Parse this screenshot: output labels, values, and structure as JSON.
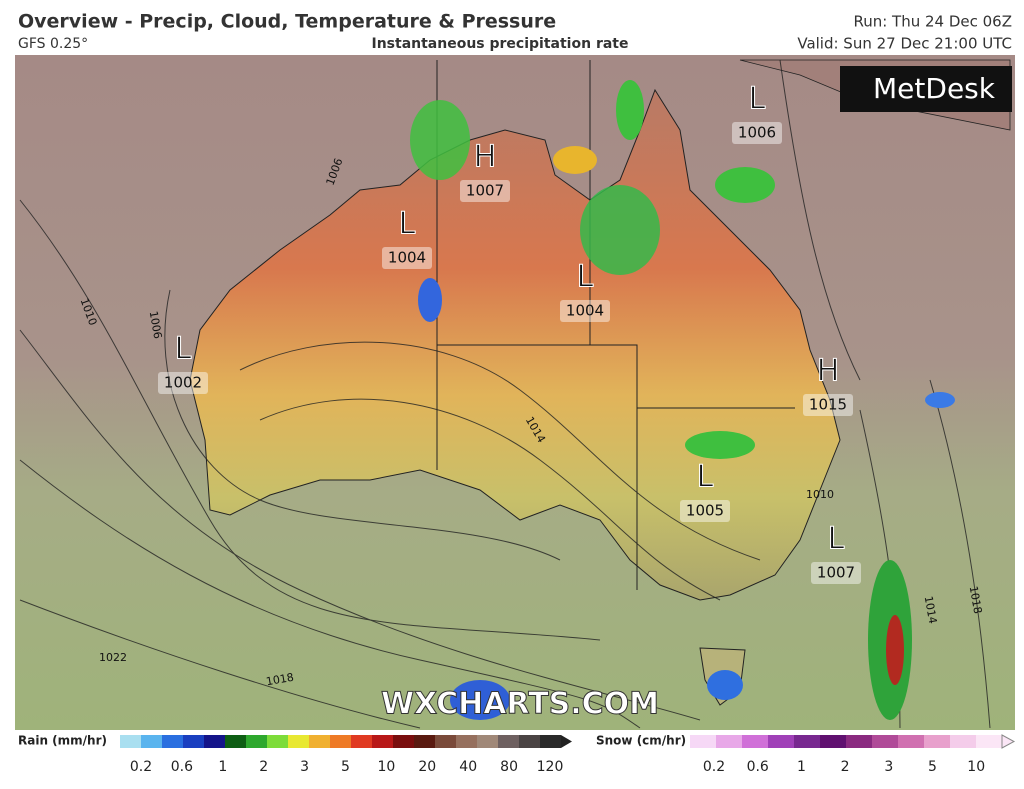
{
  "header": {
    "title": "Overview - Precip, Cloud, Temperature & Pressure",
    "model": "GFS 0.25°",
    "subtitle": "Instantaneous precipitation rate",
    "run": "Run: Thu 24 Dec 06Z",
    "valid": "Valid: Sun 27 Dec 21:00 UTC"
  },
  "map": {
    "pressure_centers": [
      {
        "symbol": "L",
        "value": 1006
      },
      {
        "symbol": "H",
        "value": 1007
      },
      {
        "symbol": "L",
        "value": 1004
      },
      {
        "symbol": "L",
        "value": 1004
      },
      {
        "symbol": "L",
        "value": 1002
      },
      {
        "symbol": "H",
        "value": 1015
      },
      {
        "symbol": "L",
        "value": 1005
      },
      {
        "symbol": "L",
        "value": 1007
      }
    ],
    "isobar_labels": [
      1006,
      1010,
      1006,
      1014,
      1022,
      1018,
      1010,
      1014,
      1018
    ],
    "logo": "MetDesk",
    "watermark": "WXCHARTS.COM"
  },
  "legend": {
    "rain": {
      "label": "Rain (mm/hr)",
      "ticks": [
        0.2,
        0.6,
        1,
        2,
        3,
        5,
        10,
        20,
        40,
        80,
        120
      ]
    },
    "snow": {
      "label": "Snow (cm/hr)",
      "ticks": [
        0.2,
        0.6,
        1,
        2,
        3,
        5,
        10
      ]
    }
  }
}
